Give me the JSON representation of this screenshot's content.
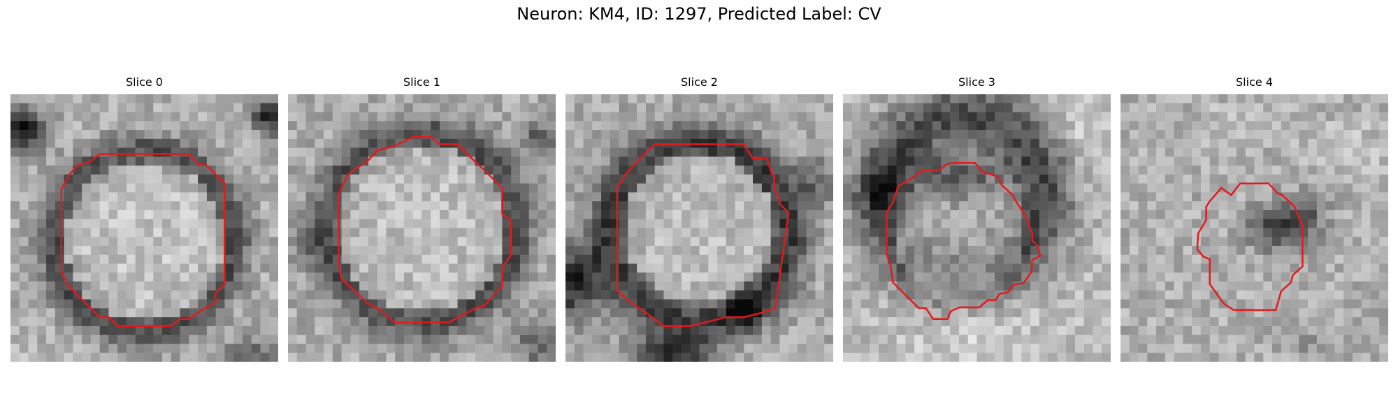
{
  "figure": {
    "suptitle": "Neuron: KM4, ID: 1297, Predicted Label: CV",
    "contour_color": "#e31a1c",
    "colormap": "gray"
  },
  "panels": [
    {
      "title": "Slice 0",
      "image_description": "grayscale 30x30 crop, bright round region enclosed by contour, dark ring"
    },
    {
      "title": "Slice 1",
      "image_description": "grayscale crop, large bright round region enclosed by contour"
    },
    {
      "title": "Slice 2",
      "image_description": "grayscale crop, round region with dark rim, darker lower-left corner"
    },
    {
      "title": "Slice 3",
      "image_description": "grayscale crop, dark band across top-middle, contour in center"
    },
    {
      "title": "Slice 4",
      "image_description": "grayscale crop, small dark blob near center, smaller contour"
    }
  ]
}
